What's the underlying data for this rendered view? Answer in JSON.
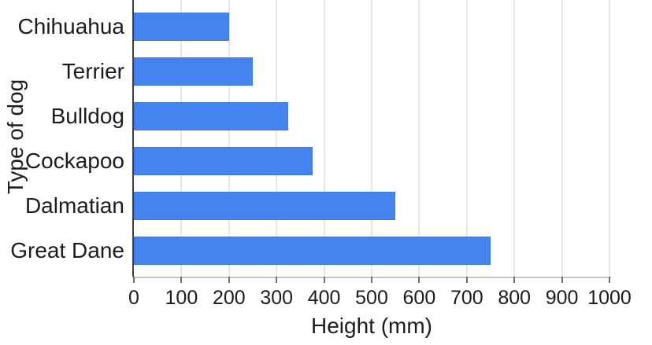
{
  "chart_data": {
    "type": "bar",
    "orientation": "horizontal",
    "title": "",
    "xlabel": "Height (mm)",
    "ylabel": "Type of dog",
    "categories": [
      "Chihuahua",
      "Terrier",
      "Bulldog",
      "Cockapoo",
      "Dalmatian",
      "Great Dane"
    ],
    "values": [
      200,
      250,
      325,
      375,
      550,
      750
    ],
    "xlim": [
      0,
      1000
    ],
    "x_ticks": [
      0,
      100,
      200,
      300,
      400,
      500,
      600,
      700,
      800,
      900,
      1000
    ],
    "grid": true,
    "legend": false,
    "colors": {
      "bar_fill": "#4483f0",
      "bar_border": "#3d79e0",
      "gridline": "#e7e7e7",
      "zero_line": "#3f3f3f",
      "axis_line": "#c6c6c6",
      "tick": "#6e6e6e",
      "text": "#1c1c1c"
    }
  }
}
